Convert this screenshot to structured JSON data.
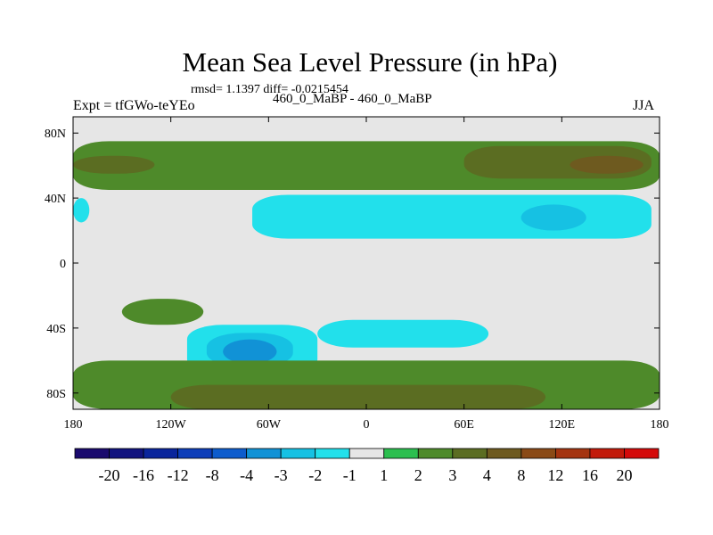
{
  "chart_data": {
    "type": "heatmap",
    "title": "Mean Sea Level Pressure (in hPa)",
    "stats_text": "rmsd= 1.1397 diff= -0.0215454",
    "experiment_text": "Expt = tfGWo-teYEo",
    "comparison_text": "460_0_MaBP - 460_0_MaBP",
    "season": "JJA",
    "xlim": [
      -180,
      180
    ],
    "ylim": [
      -90,
      90
    ],
    "x_ticks": [
      {
        "value": -180,
        "label": "180"
      },
      {
        "value": -120,
        "label": "120W"
      },
      {
        "value": -60,
        "label": "60W"
      },
      {
        "value": 0,
        "label": "0"
      },
      {
        "value": 60,
        "label": "60E"
      },
      {
        "value": 120,
        "label": "120E"
      },
      {
        "value": 180,
        "label": "180"
      }
    ],
    "y_ticks": [
      {
        "value": 80,
        "label": "80N"
      },
      {
        "value": 40,
        "label": "40N"
      },
      {
        "value": 0,
        "label": "0"
      },
      {
        "value": -40,
        "label": "40S"
      },
      {
        "value": -80,
        "label": "80S"
      }
    ],
    "colorbar": {
      "colors": [
        "#1a0a6e",
        "#11137f",
        "#0a259c",
        "#0c3db9",
        "#0d5ccd",
        "#1192d6",
        "#16c1e3",
        "#22e0eb",
        "#e6e6e6",
        "#2cbf4f",
        "#4e8a2a",
        "#5b6d22",
        "#6e5a1f",
        "#8a4a16",
        "#a43410",
        "#c21a0a",
        "#d40a0a"
      ],
      "labels": [
        "-20",
        "-16",
        "-12",
        "-8",
        "-4",
        "-3",
        "-2",
        "-1",
        "1",
        "2",
        "3",
        "4",
        "8",
        "12",
        "16",
        "20"
      ]
    },
    "background_color": "#e6e6e6",
    "anomaly_regions": [
      {
        "lon_min": -180,
        "lon_max": 180,
        "lat_min": 45,
        "lat_max": 75,
        "class": 2
      },
      {
        "lon_min": -180,
        "lon_max": -130,
        "lat_min": 55,
        "lat_max": 66,
        "class": 3
      },
      {
        "lon_min": 60,
        "lon_max": 175,
        "lat_min": 52,
        "lat_max": 72,
        "class": 3
      },
      {
        "lon_min": 125,
        "lon_max": 170,
        "lat_min": 55,
        "lat_max": 66,
        "class": 4
      },
      {
        "lon_min": -180,
        "lon_max": -170,
        "lat_min": 25,
        "lat_max": 40,
        "class": -1
      },
      {
        "lon_min": -70,
        "lon_max": 175,
        "lat_min": 15,
        "lat_max": 42,
        "class": -1
      },
      {
        "lon_min": 95,
        "lon_max": 135,
        "lat_min": 20,
        "lat_max": 36,
        "class": -2
      },
      {
        "lon_min": -150,
        "lon_max": -100,
        "lat_min": -38,
        "lat_max": -22,
        "class": 2
      },
      {
        "lon_min": -30,
        "lon_max": 75,
        "lat_min": -52,
        "lat_max": -35,
        "class": -1
      },
      {
        "lon_min": -110,
        "lon_max": -30,
        "lat_min": -68,
        "lat_max": -38,
        "class": -1
      },
      {
        "lon_min": -98,
        "lon_max": -45,
        "lat_min": -64,
        "lat_max": -43,
        "class": -2
      },
      {
        "lon_min": -88,
        "lon_max": -55,
        "lat_min": -62,
        "lat_max": -47,
        "class": -3
      },
      {
        "lon_min": -180,
        "lon_max": 180,
        "lat_min": -90,
        "lat_max": -60,
        "class": 2
      },
      {
        "lon_min": -120,
        "lon_max": 110,
        "lat_min": -90,
        "lat_max": -75,
        "class": 3
      }
    ]
  }
}
